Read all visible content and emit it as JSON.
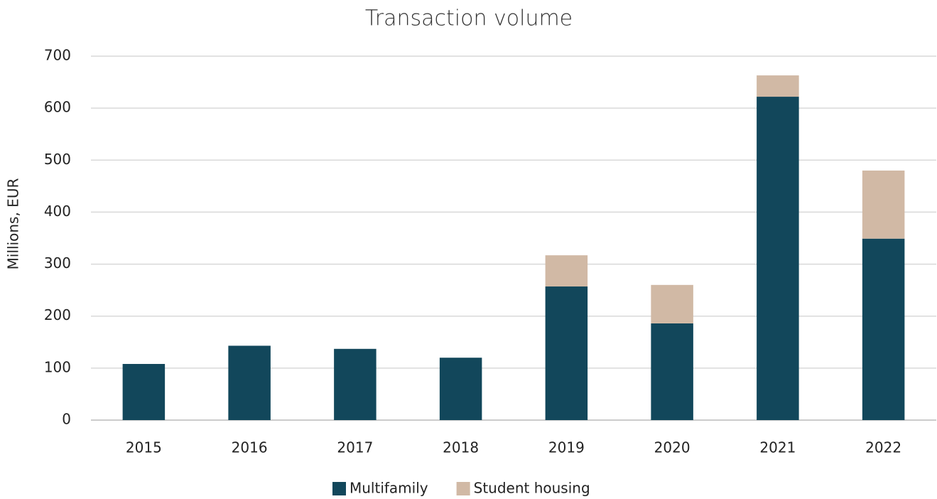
{
  "chart_data": {
    "type": "stacked_bar",
    "title": "Transaction volume",
    "y_label": "Millions, EUR",
    "categories": [
      "2015",
      "2016",
      "2017",
      "2018",
      "2019",
      "2020",
      "2021",
      "2022"
    ],
    "series": [
      {
        "name": "Multifamily",
        "color": "#12475b",
        "values": [
          108,
          143,
          137,
          120,
          257,
          186,
          622,
          349
        ]
      },
      {
        "name": "Student housing",
        "color": "#d1b9a5",
        "values": [
          0,
          0,
          0,
          0,
          60,
          74,
          41,
          131
        ]
      }
    ],
    "ylim": [
      0,
      700
    ],
    "yticks": [
      0,
      100,
      200,
      300,
      400,
      500,
      600,
      700
    ],
    "grid": true,
    "legend": "bottom"
  }
}
